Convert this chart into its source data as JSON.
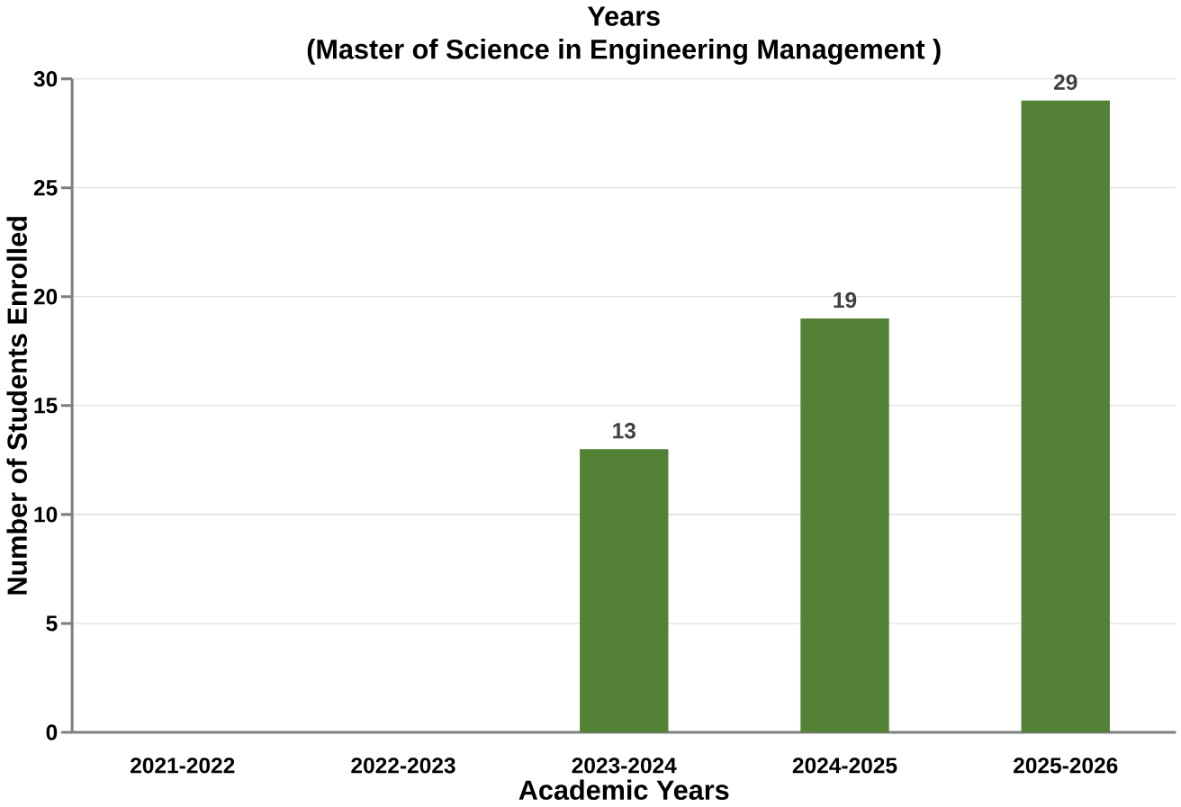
{
  "chart_data": {
    "type": "bar",
    "title": "Years",
    "subtitle": "(Master of Science in Engineering Management )",
    "xlabel": "Academic Years",
    "ylabel": "Number of Students Enrolled",
    "categories": [
      "2021-2022",
      "2022-2023",
      "2023-2024",
      "2024-2025",
      "2025-2026"
    ],
    "values": [
      null,
      null,
      13,
      19,
      29
    ],
    "color": "#538135",
    "ylim": [
      0,
      30
    ],
    "yticks": [
      0,
      5,
      10,
      15,
      20,
      25,
      30
    ],
    "grid": "y",
    "data_labels": true
  }
}
